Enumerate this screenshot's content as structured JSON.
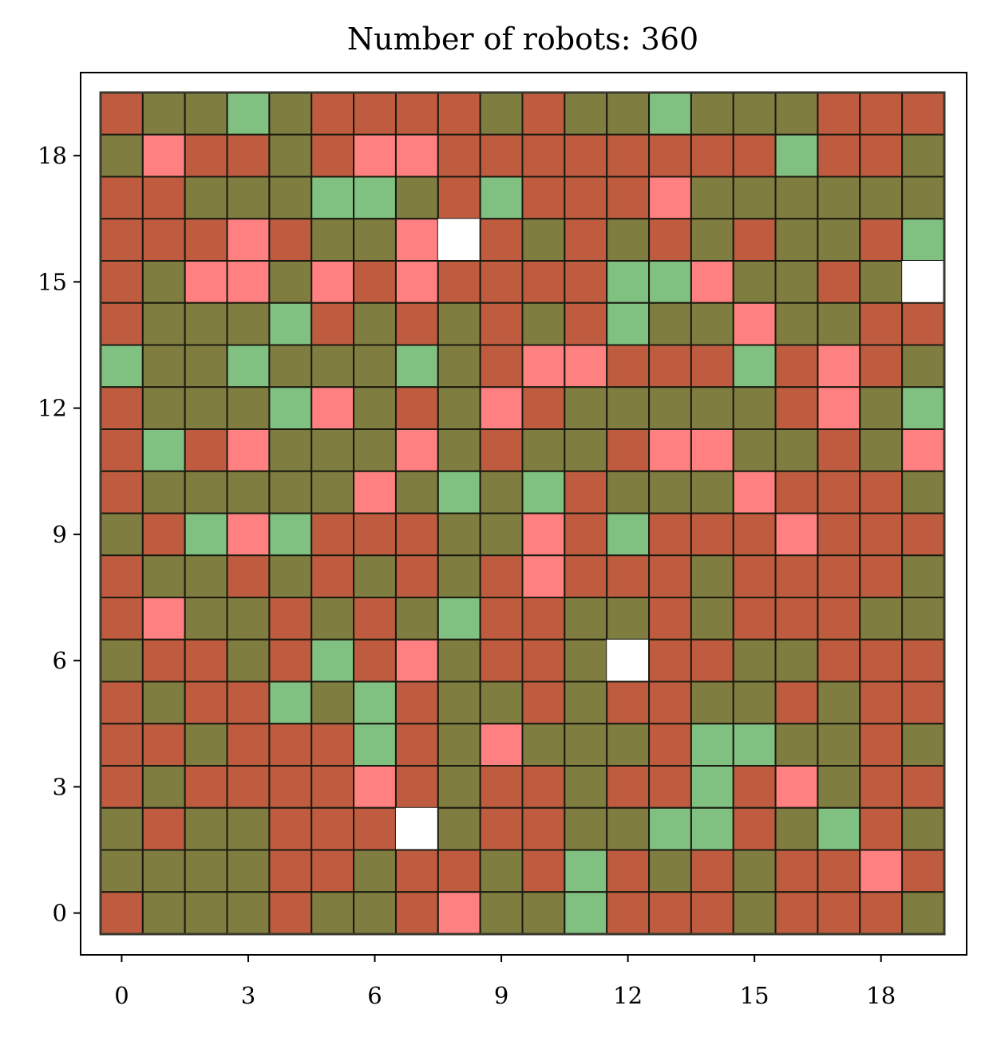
{
  "chart_data": {
    "type": "heatmap",
    "title": "Number of robots: 360",
    "xlabel": "",
    "ylabel": "",
    "xlim": [
      -0.5,
      19.5
    ],
    "ylim": [
      -0.5,
      19.5
    ],
    "xticks": [
      0,
      3,
      6,
      9,
      12,
      15,
      18
    ],
    "yticks": [
      0,
      3,
      6,
      9,
      12,
      15,
      18
    ],
    "grid": false,
    "rows_top_to_bottom_y": [
      19,
      18,
      17,
      16,
      15,
      14,
      13,
      12,
      11,
      10,
      9,
      8,
      7,
      6,
      5,
      4,
      3,
      2,
      1,
      0
    ],
    "legend": {
      "R": "#bf5c40",
      "O": "#807d40",
      "G": "#80c080",
      "P": "#ff8080",
      "W": "#ffffff"
    },
    "grid_rows": [
      "ROOGORRRROROOGOOORRR",
      "OPRRORPPRRRRRRRRGRRO",
      "RROOOGGORGRRRPOOOOOO",
      "RRRPROOPWROROROROORG",
      "ROPPOPRPRRRRGGPOOROW",
      "ROOOGRORORORGOOPOORR",
      "GOOGOOOGORPPRRRGRPRO",
      "ROOOGPOROPROOOOORPOG",
      "RGRPOOOPOROORPPOORop",
      "ROOOOOPOGOGROOOPRRRO",
      "ORGPGRRROOPRGRRRPRRR",
      "ROORORORORPRRRORRRRO",
      "RPOOROROGRROORORRROO",
      "ORRORGRPORROWRROORRR",
      "RORRGOGROORORROORORR",
      "RRORRRGROPOOORGGOORO",
      "RORRRRPRORRORRGRPORR",
      "OROORRRWORROOGGROGRO",
      "OOOORRORRORGRORORRPR",
      "ROOOROORPOOGRRRORRRO"
    ]
  }
}
